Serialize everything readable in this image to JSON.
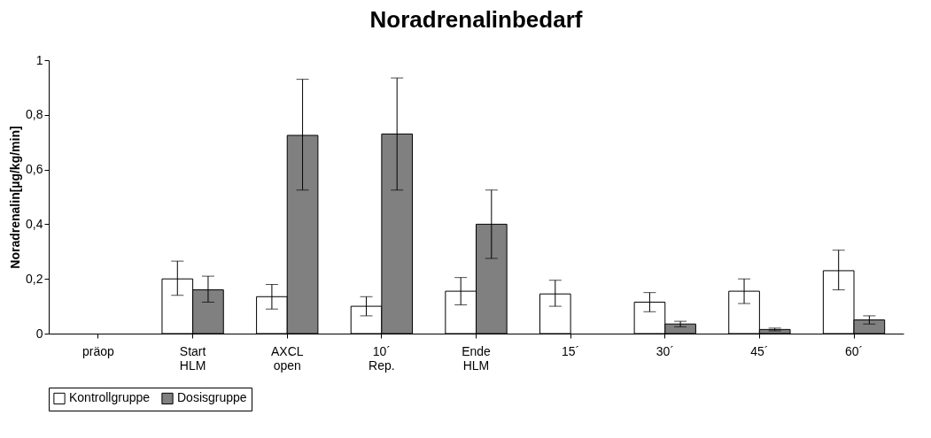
{
  "chart_data": {
    "type": "bar",
    "title": "Noradrenalinbedarf",
    "ylabel": "Noradrenalin[µg/kg/min]",
    "categories": [
      "präop",
      "Start HLM",
      "AXCL open",
      "10´ Rep.",
      "Ende HLM",
      "15´",
      "30´",
      "45´",
      "60´"
    ],
    "series": [
      {
        "name": "Kontrollgruppe",
        "color": "#ffffff",
        "values": [
          0,
          0.2,
          0.135,
          0.1,
          0.155,
          0.145,
          0.115,
          0.155,
          0.23
        ],
        "errors": [
          null,
          [
            0.14,
            0.265
          ],
          [
            0.09,
            0.18
          ],
          [
            0.065,
            0.135
          ],
          [
            0.105,
            0.205
          ],
          [
            0.1,
            0.195
          ],
          [
            0.08,
            0.15
          ],
          [
            0.11,
            0.2
          ],
          [
            0.16,
            0.305
          ]
        ]
      },
      {
        "name": "Dosisgruppe",
        "color": "#808080",
        "values": [
          0,
          0.16,
          0.725,
          0.73,
          0.4,
          0,
          0.035,
          0.015,
          0.05
        ],
        "errors": [
          null,
          [
            0.115,
            0.21
          ],
          [
            0.525,
            0.93
          ],
          [
            0.525,
            0.935
          ],
          [
            0.275,
            0.525
          ],
          null,
          [
            0.025,
            0.045
          ],
          [
            0.01,
            0.02
          ],
          [
            0.035,
            0.065
          ]
        ]
      }
    ],
    "ylim": [
      0,
      1
    ],
    "yticks": [
      0,
      {
        "value": 0.2,
        "label": "0,2"
      },
      {
        "value": 0.4,
        "label": "0,4"
      },
      {
        "value": 0.6,
        "label": "0,6"
      },
      {
        "value": 0.8,
        "label": "0,8"
      },
      1
    ],
    "grid": false,
    "legend": "bottom"
  }
}
